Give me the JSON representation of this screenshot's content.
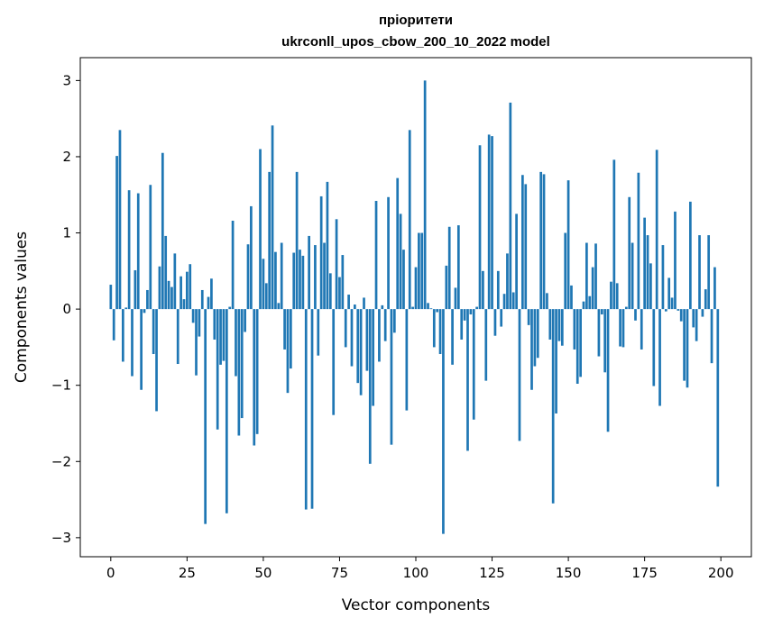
{
  "chart_data": {
    "type": "bar",
    "title": "пріоритети",
    "subtitle": "ukrconll_upos_cbow_200_10_2022 model",
    "xlabel": "Vector components",
    "ylabel": "Components values",
    "xlim": [
      -10,
      210
    ],
    "ylim": [
      -3.25,
      3.3
    ],
    "xticks": [
      0,
      25,
      50,
      75,
      100,
      125,
      150,
      175,
      200
    ],
    "yticks": [
      -3,
      -2,
      -1,
      0,
      1,
      2,
      3
    ],
    "ytick_labels": [
      "−3",
      "−2",
      "−1",
      "0",
      "1",
      "2",
      "3"
    ],
    "bar_color": "#1f77b4",
    "values": [
      0.32,
      -0.41,
      2.01,
      2.35,
      -0.69,
      0.02,
      1.56,
      -0.88,
      0.51,
      1.52,
      -1.06,
      -0.05,
      0.25,
      1.63,
      -0.59,
      -1.34,
      0.56,
      2.05,
      0.96,
      0.37,
      0.29,
      0.73,
      -0.72,
      0.43,
      0.13,
      0.49,
      0.59,
      -0.18,
      -0.87,
      -0.36,
      0.25,
      -2.82,
      0.16,
      0.4,
      -0.4,
      -1.58,
      -0.73,
      -0.68,
      -2.68,
      0.03,
      1.16,
      -0.88,
      -1.66,
      -1.43,
      -0.3,
      0.85,
      1.35,
      -1.79,
      -1.64,
      2.1,
      0.66,
      0.34,
      1.8,
      2.41,
      0.75,
      0.08,
      0.87,
      -0.53,
      -1.1,
      -0.78,
      0.74,
      1.8,
      0.78,
      0.7,
      -2.63,
      0.96,
      -2.62,
      0.84,
      -0.61,
      1.48,
      0.87,
      1.67,
      0.47,
      -1.39,
      1.18,
      0.42,
      0.71,
      -0.5,
      0.19,
      -0.75,
      0.06,
      -0.97,
      -1.13,
      0.15,
      -0.81,
      -2.03,
      -1.27,
      1.42,
      -0.69,
      0.05,
      -0.42,
      1.47,
      -1.78,
      -0.31,
      1.72,
      1.25,
      0.78,
      -1.33,
      2.35,
      0.03,
      0.55,
      1.0,
      1.0,
      3.0,
      0.08,
      0.01,
      -0.5,
      -0.04,
      -0.59,
      -2.95,
      0.57,
      1.08,
      -0.73,
      0.28,
      1.1,
      -0.4,
      -0.15,
      -1.86,
      -0.07,
      -1.45,
      0.03,
      2.15,
      0.5,
      -0.94,
      2.29,
      2.27,
      -0.35,
      0.5,
      -0.23,
      0.2,
      0.73,
      2.71,
      0.22,
      1.25,
      -1.73,
      1.76,
      1.64,
      -0.21,
      -1.06,
      -0.75,
      -0.64,
      1.8,
      1.77,
      0.21,
      -0.4,
      -2.55,
      -1.37,
      -0.42,
      -0.48,
      1.0,
      1.69,
      0.31,
      -0.53,
      -0.98,
      -0.89,
      0.1,
      0.87,
      0.17,
      0.55,
      0.86,
      -0.62,
      -0.07,
      -0.83,
      -1.61,
      0.36,
      1.96,
      0.34,
      -0.49,
      -0.5,
      0.03,
      1.47,
      0.87,
      -0.15,
      1.79,
      -0.53,
      1.2,
      0.97,
      0.6,
      -1.01,
      2.09,
      -1.27,
      0.84,
      -0.03,
      0.41,
      0.15,
      1.28,
      -0.02,
      -0.16,
      -0.94,
      -1.03,
      1.41,
      -0.24,
      -0.42,
      0.97,
      -0.1,
      0.26,
      0.97,
      -0.71,
      0.55,
      -2.33
    ]
  }
}
